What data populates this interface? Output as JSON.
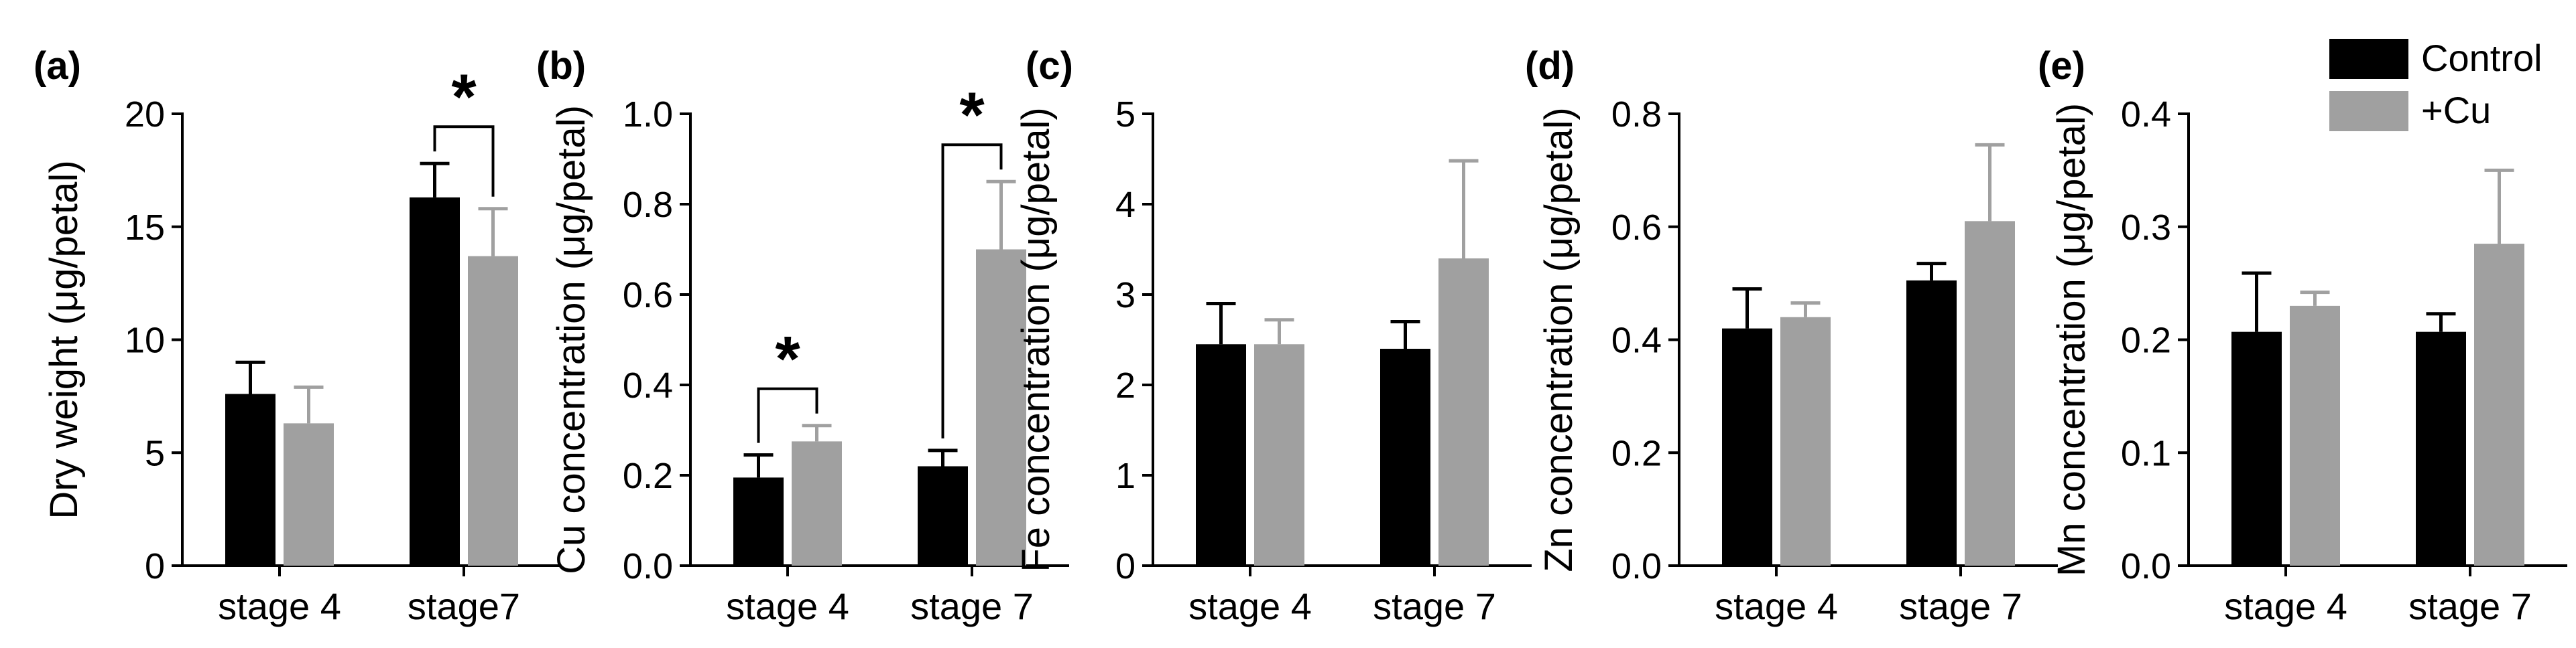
{
  "legend": [
    {
      "name": "Control",
      "color": "#000000"
    },
    {
      "name": "+Cu",
      "color": "#a0a0a0"
    }
  ],
  "chart_data": [
    {
      "type": "bar",
      "panel": "(a)",
      "categories": [
        "stage 4",
        "stage7"
      ],
      "series": [
        {
          "name": "Control",
          "values": [
            7.6,
            16.3
          ],
          "errors": [
            1.4,
            1.5
          ]
        },
        {
          "name": "+Cu",
          "values": [
            6.3,
            13.7
          ],
          "errors": [
            1.6,
            2.1
          ]
        }
      ],
      "ylabel": "Dry weight (μg/petal)",
      "ylim": [
        0,
        20
      ],
      "yticks": [
        "0",
        "5",
        "10",
        "15",
        "20"
      ],
      "significance": [
        {
          "category": 1,
          "label": "*"
        }
      ]
    },
    {
      "type": "bar",
      "panel": "(b)",
      "categories": [
        "stage 4",
        "stage 7"
      ],
      "series": [
        {
          "name": "Control",
          "values": [
            0.195,
            0.22
          ],
          "errors": [
            0.05,
            0.035
          ]
        },
        {
          "name": "+Cu",
          "values": [
            0.275,
            0.7
          ],
          "errors": [
            0.035,
            0.15
          ]
        }
      ],
      "ylabel": "Cu concentration (μg/petal)",
      "ylim": [
        0,
        1.0
      ],
      "yticks": [
        "0.0",
        "0.2",
        "0.4",
        "0.6",
        "0.8",
        "1.0"
      ],
      "significance": [
        {
          "category": 0,
          "label": "*"
        },
        {
          "category": 1,
          "label": "*"
        }
      ]
    },
    {
      "type": "bar",
      "panel": "(c)",
      "categories": [
        "stage 4",
        "stage 7"
      ],
      "series": [
        {
          "name": "Control",
          "values": [
            2.45,
            2.4
          ],
          "errors": [
            0.45,
            0.3
          ]
        },
        {
          "name": "+Cu",
          "values": [
            2.45,
            3.4
          ],
          "errors": [
            0.27,
            1.08
          ]
        }
      ],
      "ylabel": "Fe concentration (μg/petal)",
      "ylim": [
        0,
        5
      ],
      "yticks": [
        "0",
        "1",
        "2",
        "3",
        "4",
        "5"
      ],
      "significance": []
    },
    {
      "type": "bar",
      "panel": "(d)",
      "categories": [
        "stage 4",
        "stage 7"
      ],
      "series": [
        {
          "name": "Control",
          "values": [
            0.42,
            0.505
          ],
          "errors": [
            0.07,
            0.03
          ]
        },
        {
          "name": "+Cu",
          "values": [
            0.44,
            0.61
          ],
          "errors": [
            0.025,
            0.135
          ]
        }
      ],
      "ylabel": "Zn concentration (μg/petal)",
      "ylim": [
        0,
        0.8
      ],
      "yticks": [
        "0.0",
        "0.2",
        "0.4",
        "0.6",
        "0.8"
      ],
      "significance": []
    },
    {
      "type": "bar",
      "panel": "(e)",
      "categories": [
        "stage 4",
        "stage 7"
      ],
      "series": [
        {
          "name": "Control",
          "values": [
            0.207,
            0.207
          ],
          "errors": [
            0.052,
            0.016
          ]
        },
        {
          "name": "+Cu",
          "values": [
            0.23,
            0.285
          ],
          "errors": [
            0.012,
            0.065
          ]
        }
      ],
      "ylabel": "Mn concentration (μg/petal)",
      "ylim": [
        0,
        0.4
      ],
      "yticks": [
        "0.0",
        "0.1",
        "0.2",
        "0.3",
        "0.4"
      ],
      "significance": []
    }
  ]
}
